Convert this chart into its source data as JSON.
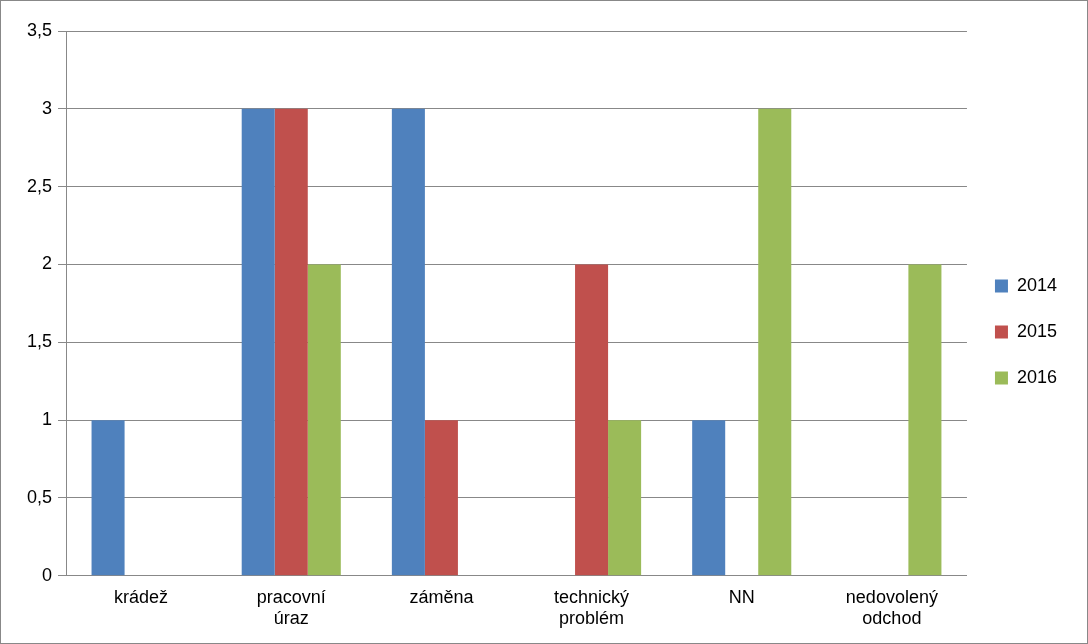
{
  "chart_data": {
    "type": "bar",
    "categories": [
      "krádež",
      "pracovní úraz",
      "záměna",
      "technický problém",
      "NN",
      "nedovolený odchod"
    ],
    "series": [
      {
        "name": "2014",
        "color": "#4f81bd",
        "values": [
          1,
          3,
          3,
          null,
          1,
          null
        ]
      },
      {
        "name": "2015",
        "color": "#c0504d",
        "values": [
          null,
          3,
          1,
          2,
          null,
          null
        ]
      },
      {
        "name": "2016",
        "color": "#9bbb59",
        "values": [
          null,
          2,
          null,
          1,
          3,
          2
        ]
      }
    ],
    "ylim": [
      0,
      3.5
    ],
    "yticks": [
      0,
      {
        "value": 0.5,
        "label": "0,5"
      },
      1,
      {
        "value": 1.5,
        "label": "1,5"
      },
      2,
      {
        "value": 2.5,
        "label": "2,5"
      },
      3,
      {
        "value": 3.5,
        "label": "3,5"
      }
    ],
    "grid": "y",
    "legend": "right"
  }
}
